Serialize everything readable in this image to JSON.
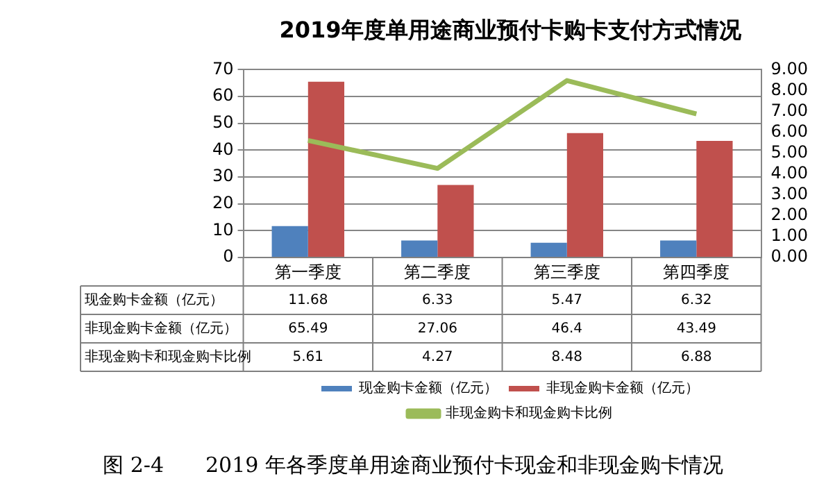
{
  "chart_data": {
    "type": "bar",
    "title": "2019年度单用途商业预付卡购卡支付方式情况",
    "categories": [
      "第一季度",
      "第二季度",
      "第三季度",
      "第四季度"
    ],
    "series": [
      {
        "name": "现金购卡金额（亿元）",
        "color": "#4f81bd",
        "values": [
          11.68,
          6.33,
          5.47,
          6.32
        ]
      },
      {
        "name": "非现金购卡金额（亿元）",
        "color": "#c0504d",
        "values": [
          65.49,
          27.06,
          46.4,
          43.49
        ]
      },
      {
        "name": "非现金购卡和现金购卡比例",
        "type": "line",
        "axis": "y2",
        "color": "#9bbb59",
        "values": [
          5.61,
          4.27,
          8.48,
          6.88
        ],
        "marker": "none"
      }
    ],
    "ylim": [
      0,
      70
    ],
    "yticks": [
      0,
      10,
      20,
      30,
      40,
      50,
      60,
      70
    ],
    "y2lim": [
      0,
      9
    ],
    "y2ticks": [
      {
        "value": 0,
        "label": "0.00"
      },
      {
        "value": 1,
        "label": "1.00"
      },
      {
        "value": 2,
        "label": "2.00"
      },
      {
        "value": 3,
        "label": "3.00"
      },
      {
        "value": 4,
        "label": "4.00"
      },
      {
        "value": 5,
        "label": "5.00"
      },
      {
        "value": 6,
        "label": "6.00"
      },
      {
        "value": 7,
        "label": "7.00"
      },
      {
        "value": 8,
        "label": "8.00"
      },
      {
        "value": 9,
        "label": "9.00"
      }
    ],
    "grid": "y",
    "legend": "bottom",
    "data_labels": true,
    "annotations": [
      "图 2-4　　2019 年各季度单用途商业预付卡现金和非现金购卡情况"
    ]
  }
}
